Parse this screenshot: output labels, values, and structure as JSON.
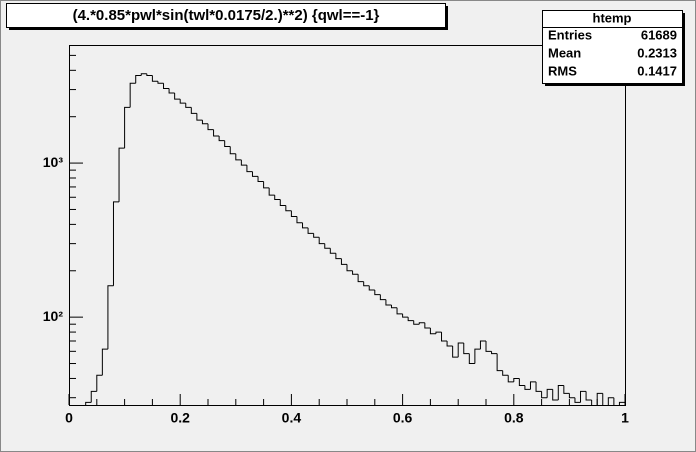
{
  "chart_data": {
    "type": "histogram",
    "title": "(4.*0.85*pwl*sin(twl*0.0175/2.)**2) {qwl==-1}",
    "bins": [
      0,
      0.01,
      0.02,
      0.03,
      0.04,
      0.05,
      0.06,
      0.07,
      0.08,
      0.09,
      0.1,
      0.11,
      0.12,
      0.13,
      0.14,
      0.15,
      0.16,
      0.17,
      0.18,
      0.19,
      0.2,
      0.21,
      0.22,
      0.23,
      0.24,
      0.25,
      0.26,
      0.27,
      0.28,
      0.29,
      0.3,
      0.31,
      0.32,
      0.33,
      0.34,
      0.35,
      0.36,
      0.37,
      0.38,
      0.39,
      0.4,
      0.41,
      0.42,
      0.43,
      0.44,
      0.45,
      0.46,
      0.47,
      0.48,
      0.49,
      0.5,
      0.51,
      0.52,
      0.53,
      0.54,
      0.55,
      0.56,
      0.57,
      0.58,
      0.59,
      0.6,
      0.61,
      0.62,
      0.63,
      0.64,
      0.65,
      0.66,
      0.67,
      0.68,
      0.69,
      0.7,
      0.71,
      0.72,
      0.73,
      0.74,
      0.75,
      0.76,
      0.77,
      0.78,
      0.79,
      0.8,
      0.81,
      0.82,
      0.83,
      0.84,
      0.85,
      0.86,
      0.87,
      0.88,
      0.89,
      0.9,
      0.91,
      0.92,
      0.93,
      0.94,
      0.95,
      0.96,
      0.97,
      0.98,
      0.99,
      1
    ],
    "counts": [
      0,
      0,
      0,
      28,
      33,
      42,
      62,
      160,
      560,
      1250,
      2300,
      3300,
      3700,
      3800,
      3700,
      3400,
      3300,
      3050,
      2850,
      2600,
      2450,
      2300,
      2100,
      1900,
      1800,
      1650,
      1500,
      1400,
      1280,
      1150,
      1050,
      970,
      880,
      820,
      760,
      690,
      620,
      580,
      530,
      490,
      450,
      410,
      380,
      350,
      330,
      300,
      280,
      260,
      240,
      220,
      200,
      190,
      170,
      160,
      150,
      140,
      130,
      120,
      115,
      105,
      100,
      95,
      90,
      92,
      85,
      78,
      80,
      70,
      65,
      55,
      68,
      58,
      50,
      62,
      70,
      60,
      58,
      45,
      42,
      38,
      40,
      36,
      34,
      38,
      33,
      30,
      34,
      29,
      36,
      32,
      30,
      28,
      33,
      29,
      0,
      32,
      0,
      30,
      0,
      28
    ],
    "color": "#000000",
    "xlim": [
      0,
      1
    ],
    "xticks": [
      0,
      0.2,
      0.4,
      0.6,
      0.8,
      1
    ],
    "xminorticks": [
      0.05,
      0.1,
      0.15,
      0.25,
      0.3,
      0.35,
      0.45,
      0.5,
      0.55,
      0.65,
      0.7,
      0.75,
      0.85,
      0.9,
      0.95
    ],
    "ylim": [
      26.9,
      5840
    ],
    "ylog": true,
    "yticks": [
      {
        "value": 100,
        "label": "10²"
      },
      {
        "value": 1000,
        "label": "10³"
      }
    ],
    "yminorticks": [
      30,
      40,
      50,
      60,
      70,
      80,
      90,
      200,
      300,
      400,
      500,
      600,
      700,
      800,
      900,
      2000,
      3000,
      4000,
      5000
    ],
    "stats": {
      "title": "htemp",
      "rows": [
        [
          "Entries",
          "61689"
        ],
        [
          "Mean",
          "0.2313"
        ],
        [
          "RMS",
          "0.1417"
        ]
      ]
    }
  }
}
